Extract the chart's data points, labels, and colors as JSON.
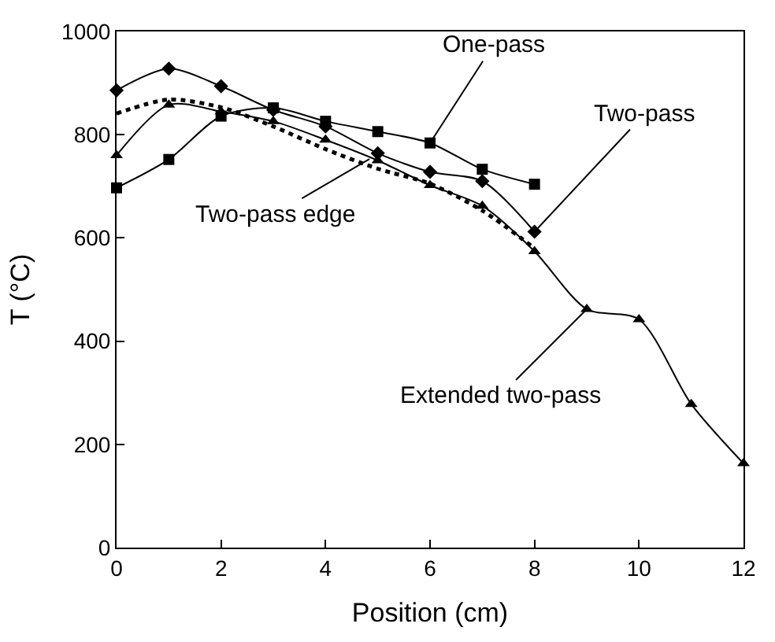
{
  "chart_data": {
    "type": "line",
    "xlabel": "Position (cm)",
    "ylabel": "T (°C)",
    "xlim": [
      0,
      12
    ],
    "xticks": [
      0,
      2,
      4,
      6,
      8,
      10,
      12
    ],
    "ylim": [
      0,
      1000
    ],
    "yticks": [
      0,
      200,
      400,
      600,
      800,
      1000
    ],
    "legend": false,
    "series": [
      {
        "color": "#000000",
        "marker": "square",
        "line_style": "solid",
        "x": [
          0,
          1,
          2,
          3,
          4,
          5,
          6,
          7,
          8
        ],
        "values": [
          697,
          752,
          836,
          852,
          826,
          806,
          784,
          733,
          704
        ]
      },
      {
        "color": "#000000",
        "marker": "diamond",
        "line_style": "solid",
        "x": [
          0,
          1,
          2,
          3,
          4,
          5,
          6,
          7,
          8
        ],
        "values": [
          886,
          928,
          894,
          848,
          816,
          764,
          728,
          710,
          612
        ]
      },
      {
        "color": "#000000",
        "marker": "triangle",
        "line_style": "solid",
        "x": [
          0,
          1,
          2,
          3,
          4,
          5,
          6,
          7,
          8,
          9,
          10,
          11,
          12
        ],
        "values": [
          760,
          858,
          845,
          826,
          790,
          750,
          702,
          662,
          574,
          462,
          442,
          278,
          163
        ]
      },
      {
        "color": "#000000",
        "marker": "none",
        "line_style": "dotted",
        "x": [
          0,
          1,
          2,
          3,
          4,
          5,
          6,
          7,
          8
        ],
        "values": [
          841,
          868,
          853,
          816,
          772,
          734,
          705,
          653,
          580
        ]
      }
    ],
    "annotations": [
      {
        "text": "One-pass",
        "x": 6,
        "y": 784
      },
      {
        "text": "Two-pass",
        "x": 8,
        "y": 612
      },
      {
        "text": "Two-pass edge",
        "x": 4.84,
        "y": 753
      },
      {
        "text": "Extended two-pass",
        "x": 9,
        "y": 462
      }
    ]
  }
}
